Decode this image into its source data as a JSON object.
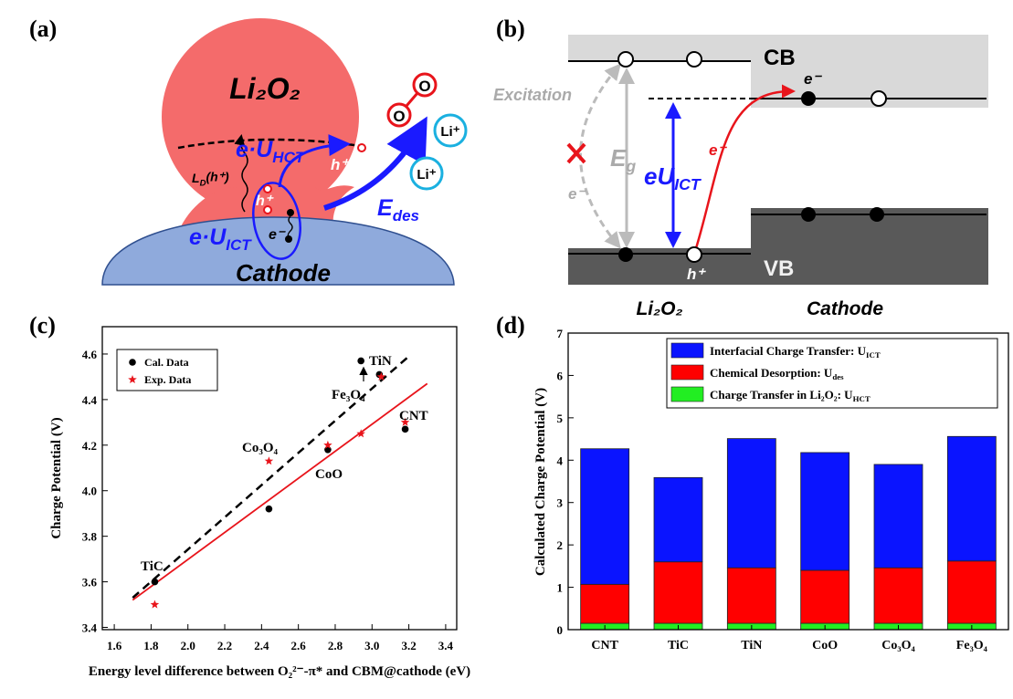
{
  "diagrams": {
    "panel_a": {
      "label": "(a)",
      "li2o2": "Li₂O₂",
      "e_u_hct": {
        "base": "e·U",
        "sub": "HCT"
      },
      "h_plus_top": "h⁺",
      "ld": {
        "base": "L",
        "sub": "D",
        "rest": "(h⁺)"
      },
      "h_plus_inner": "h⁺",
      "e_minus": "e⁻",
      "e_u_ict": {
        "base": "e·U",
        "sub": "ICT"
      },
      "cathode": "Cathode",
      "o1": "O",
      "o2": "O",
      "li1": "Li⁺",
      "li2": "Li⁺",
      "e_des": {
        "base": "E",
        "sub": "des"
      }
    },
    "panel_b": {
      "label": "(b)",
      "cb": "CB",
      "vb": "VB",
      "excitation": "Excitation",
      "eg": {
        "base": "E",
        "sub": "g"
      },
      "eu_ict": {
        "base": "eU",
        "sub": "ICT"
      },
      "e_minus_red": "e⁻",
      "e_minus_gray": "e⁻",
      "e_minus_top": "e⁻",
      "h_plus": "h⁺",
      "li2o2": "Li₂O₂",
      "cathode": "Cathode"
    }
  },
  "chart_data": [
    {
      "type": "scatter",
      "panel_label": "(c)",
      "xlabel": "Energy level difference between O₂²⁻-π* and CBM@cathode (eV)",
      "ylabel": "Charge Potential (V)",
      "xlim": [
        1.535,
        3.46
      ],
      "ylim": [
        3.39,
        4.72
      ],
      "xticks": [
        1.6,
        1.8,
        {
          "value": 2.0,
          "label": "2.0"
        },
        2.2,
        2.4,
        2.6,
        2.8,
        {
          "value": 3.0,
          "label": "3.0"
        },
        3.2,
        3.4
      ],
      "yticks": [
        3.4,
        3.6,
        3.8,
        {
          "value": 4.0,
          "label": "4.0"
        },
        4.2,
        4.4,
        4.6
      ],
      "legend": "upper left",
      "series": [
        {
          "name": "Cal. Data",
          "color": "#000000",
          "marker": "circle",
          "x": [
            1.82,
            2.44,
            2.76,
            2.94,
            3.04,
            3.18
          ],
          "values": [
            3.6,
            3.92,
            4.18,
            4.57,
            4.51,
            4.27
          ]
        },
        {
          "name": "Exp. Data",
          "color": "#e8141b",
          "marker": "star",
          "x": [
            1.82,
            2.44,
            2.76,
            2.94,
            3.05,
            3.18
          ],
          "values": [
            3.5,
            4.13,
            4.2,
            4.25,
            4.5,
            4.3
          ]
        }
      ],
      "fit_lines": [
        {
          "color": "#000000",
          "dashed": true,
          "x": [
            1.7,
            3.2
          ],
          "values": [
            3.53,
            4.59
          ]
        },
        {
          "color": "#e8141b",
          "dashed": false,
          "x": [
            1.7,
            3.3
          ],
          "values": [
            3.52,
            4.47
          ]
        }
      ],
      "annotations": [
        "TiC",
        "Co₃O₄",
        "CoO",
        "TiN",
        "Fe₃O₄",
        "CNT"
      ]
    },
    {
      "type": "stacked_bar",
      "panel_label": "(d)",
      "ylabel": "Calculated Charge Potential (V)",
      "categories": [
        "CNT",
        "TiC",
        "TiN",
        "CoO",
        "Co₃O₄",
        "Fe₃O₄"
      ],
      "ylim": [
        0,
        7
      ],
      "yticks": [
        0,
        1,
        2,
        3,
        4,
        5,
        6,
        7
      ],
      "legend": "upper right",
      "series": [
        {
          "name": {
            "base": "Charge Transfer in Li₂O₂: U",
            "sub": "HCT"
          },
          "color": "#22ee22",
          "values": [
            0.15,
            0.15,
            0.15,
            0.15,
            0.15,
            0.15
          ]
        },
        {
          "name": {
            "base": "Chemical Desorption: U",
            "sub": "des"
          },
          "color": "#ff0000",
          "values": [
            0.92,
            1.45,
            1.31,
            1.25,
            1.31,
            1.47
          ]
        },
        {
          "name": {
            "base": "Interfacial Charge Transfer: U",
            "sub": "ICT"
          },
          "color": "#0a14ff",
          "values": [
            3.2,
            1.99,
            3.05,
            2.78,
            2.44,
            2.94
          ]
        }
      ]
    }
  ]
}
